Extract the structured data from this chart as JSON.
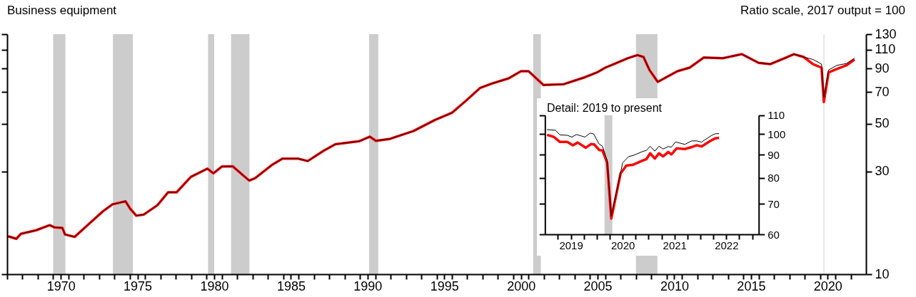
{
  "chart_data": [
    {
      "type": "line",
      "title": "Business equipment",
      "subtitle": "Ratio scale, 2017 output = 100",
      "log": true,
      "xlim": [
        1967,
        2023
      ],
      "ylim": [
        10,
        130
      ],
      "yticks": [
        10,
        30,
        50,
        70,
        90,
        110,
        130
      ],
      "xticks": [
        {
          "value": 1967,
          "label": null
        },
        {
          "value": 1968,
          "label": null
        },
        {
          "value": 1969,
          "label": null
        },
        {
          "value": 1970,
          "label": null
        },
        {
          "value": 1971,
          "label": null
        },
        {
          "value": 1972,
          "label": null
        },
        {
          "value": 1973,
          "label": null
        },
        {
          "value": 1974,
          "label": null
        },
        {
          "value": 1975,
          "label": null
        },
        {
          "value": 1976,
          "label": null
        },
        {
          "value": 1977,
          "label": null
        },
        {
          "value": 1978,
          "label": null
        },
        {
          "value": 1979,
          "label": null
        },
        {
          "value": 1980,
          "label": null
        },
        {
          "value": 1981,
          "label": null
        },
        {
          "value": 1982,
          "label": null
        },
        {
          "value": 1983,
          "label": null
        },
        {
          "value": 1984,
          "label": null
        },
        {
          "value": 1985,
          "label": null
        },
        {
          "value": 1986,
          "label": null
        },
        {
          "value": 1987,
          "label": null
        },
        {
          "value": 1988,
          "label": null
        },
        {
          "value": 1989,
          "label": null
        },
        {
          "value": 1990,
          "label": null
        },
        {
          "value": 1991,
          "label": null
        },
        {
          "value": 1992,
          "label": null
        },
        {
          "value": 1993,
          "label": null
        },
        {
          "value": 1994,
          "label": null
        },
        {
          "value": 1995,
          "label": null
        },
        {
          "value": 1996,
          "label": null
        },
        {
          "value": 1997,
          "label": null
        },
        {
          "value": 1998,
          "label": null
        },
        {
          "value": 1999,
          "label": null
        },
        {
          "value": 2000,
          "label": null
        },
        {
          "value": 2001,
          "label": null
        },
        {
          "value": 2002,
          "label": null
        },
        {
          "value": 2003,
          "label": null
        },
        {
          "value": 2004,
          "label": null
        },
        {
          "value": 2005,
          "label": null
        },
        {
          "value": 2006,
          "label": null
        },
        {
          "value": 2007,
          "label": null
        },
        {
          "value": 2008,
          "label": null
        },
        {
          "value": 2009,
          "label": null
        },
        {
          "value": 2010,
          "label": null
        },
        {
          "value": 2011,
          "label": null
        },
        {
          "value": 2012,
          "label": null
        },
        {
          "value": 2013,
          "label": null
        },
        {
          "value": 2014,
          "label": null
        },
        {
          "value": 2015,
          "label": null
        },
        {
          "value": 2016,
          "label": null
        },
        {
          "value": 2017,
          "label": null
        },
        {
          "value": 2018,
          "label": null
        },
        {
          "value": 2019,
          "label": null
        },
        {
          "value": 2020,
          "label": null
        },
        {
          "value": 2021,
          "label": null
        },
        {
          "value": 2022,
          "label": null
        },
        {
          "value": 1970.5,
          "label": "1970"
        },
        {
          "value": 1975.5,
          "label": "1975"
        },
        {
          "value": 1980.5,
          "label": "1980"
        },
        {
          "value": 1985.5,
          "label": "1985"
        },
        {
          "value": 1990.5,
          "label": "1990"
        },
        {
          "value": 1995.5,
          "label": "1995"
        },
        {
          "value": 2000.5,
          "label": "2000"
        },
        {
          "value": 2005.5,
          "label": "2005"
        },
        {
          "value": 2010.5,
          "label": "2010"
        },
        {
          "value": 2015.5,
          "label": "2015"
        },
        {
          "value": 2020.5,
          "label": "2020"
        }
      ],
      "bands": [
        {
          "axis": "x",
          "from": 1970.0,
          "to": 1970.8,
          "color": "#cccccc"
        },
        {
          "axis": "x",
          "from": 1973.9,
          "to": 1975.2,
          "color": "#cccccc"
        },
        {
          "axis": "x",
          "from": 1980.1,
          "to": 1980.5,
          "color": "#cccccc"
        },
        {
          "axis": "x",
          "from": 1981.6,
          "to": 1982.8,
          "color": "#cccccc"
        },
        {
          "axis": "x",
          "from": 1990.6,
          "to": 1991.2,
          "color": "#cccccc"
        },
        {
          "axis": "x",
          "from": 2001.3,
          "to": 2001.8,
          "color": "#cccccc"
        },
        {
          "axis": "x",
          "from": 2008.0,
          "to": 2009.4,
          "color": "#cccccc"
        },
        {
          "axis": "x",
          "from": 2020.2,
          "to": 2020.3,
          "color": "#e8e8e8"
        }
      ],
      "series": [
        {
          "color": "#ff0000",
          "x": [
            1967.06,
            1967.6,
            1967.9,
            1968.9,
            1969.77,
            1970.08,
            1970.6,
            1970.77,
            1971.4,
            1972.25,
            1973.25,
            1973.87,
            1974.72,
            1975.03,
            1975.42,
            1975.9,
            1976.8,
            1977.5,
            1978.05,
            1978.98,
            1980.06,
            1980.45,
            1981.0,
            1981.7,
            1982.78,
            1983.17,
            1984.25,
            1984.95,
            1985.95,
            1986.6,
            1987.63,
            1988.4,
            1989.95,
            1990.65,
            1991.04,
            1991.97,
            1993.5,
            1994.9,
            1996.0,
            1996.9,
            1997.85,
            1998.6,
            1999.7,
            2000.5,
            2001.0,
            2001.97,
            2003.3,
            2004.7,
            2005.46,
            2006.0,
            2006.55,
            2007.48,
            2008.1,
            2008.49,
            2008.88,
            2009.42,
            2010.7,
            2011.5,
            2012.43,
            2013.67,
            2014.9,
            2016.0,
            2016.75,
            2017.7,
            2018.3,
            2018.93,
            2019.55,
            2020.1,
            2020.25,
            2020.56,
            2021.1,
            2021.72,
            2022.25
          ],
          "values": [
            15.0,
            14.6,
            15.4,
            16.0,
            16.9,
            16.5,
            16.4,
            15.3,
            14.9,
            16.9,
            19.6,
            21.1,
            21.8,
            20.1,
            18.7,
            18.9,
            20.9,
            24.0,
            24.0,
            28.3,
            30.9,
            29.4,
            31.6,
            31.7,
            27.2,
            27.9,
            32.1,
            34.4,
            34.4,
            33.5,
            37.4,
            40.1,
            41.4,
            43.5,
            41.6,
            42.5,
            46.2,
            52.0,
            56.1,
            63.7,
            73.3,
            76.7,
            81.1,
            87.5,
            87.5,
            75.5,
            76.2,
            82.2,
            86.4,
            90.9,
            94.4,
            100.6,
            104.0,
            101.9,
            88.7,
            78.1,
            87.5,
            90.9,
            101.4,
            100.6,
            105.0,
            95.7,
            94.4,
            100.6,
            105.0,
            101.9,
            94.4,
            90.9,
            63.0,
            86.4,
            89.6,
            93.2,
            99.2
          ]
        },
        {
          "color": "#000000",
          "x": [
            1967.06,
            1967.6,
            1967.9,
            1968.9,
            1969.77,
            1970.08,
            1970.6,
            1970.77,
            1971.4,
            1972.25,
            1973.25,
            1973.87,
            1974.72,
            1975.03,
            1975.42,
            1975.9,
            1976.8,
            1977.5,
            1978.05,
            1978.98,
            1980.06,
            1980.45,
            1981.0,
            1981.7,
            1982.78,
            1983.17,
            1984.25,
            1984.95,
            1985.95,
            1986.6,
            1987.63,
            1988.4,
            1989.95,
            1990.65,
            1991.04,
            1991.97,
            1993.5,
            1994.9,
            1996.0,
            1996.9,
            1997.85,
            1998.6,
            1999.7,
            2000.5,
            2001.0,
            2001.97,
            2003.3,
            2004.7,
            2005.46,
            2006.0,
            2006.55,
            2007.48,
            2008.1,
            2008.49,
            2008.88,
            2009.42,
            2010.7,
            2011.5,
            2012.43,
            2013.67,
            2014.9,
            2016.0,
            2016.75,
            2017.7,
            2018.3,
            2018.93,
            2019.55,
            2020.1,
            2020.25,
            2020.56,
            2021.1,
            2021.72,
            2022.25
          ],
          "values": [
            15.0,
            14.6,
            15.4,
            16.0,
            16.9,
            16.5,
            16.4,
            15.3,
            14.9,
            16.9,
            19.6,
            21.1,
            21.8,
            20.1,
            18.7,
            18.9,
            20.9,
            24.0,
            24.0,
            28.3,
            30.9,
            29.4,
            31.6,
            31.7,
            27.2,
            27.9,
            32.1,
            34.4,
            34.4,
            33.5,
            37.4,
            40.1,
            41.4,
            43.5,
            41.6,
            42.5,
            46.2,
            52.0,
            56.1,
            63.7,
            73.3,
            76.7,
            81.1,
            87.5,
            87.5,
            75.5,
            76.2,
            82.2,
            86.4,
            90.9,
            94.4,
            100.6,
            104.0,
            101.9,
            88.7,
            78.1,
            87.5,
            90.9,
            101.4,
            100.6,
            105.0,
            95.7,
            94.4,
            100.6,
            105.0,
            101.9,
            99.2,
            94.4,
            66.2,
            88.7,
            93.2,
            95.0,
            100.6
          ]
        }
      ]
    },
    {
      "type": "line",
      "title": "Detail: 2019 to present",
      "log": true,
      "xlim": [
        2019,
        2023.125
      ],
      "ylim": [
        60,
        110
      ],
      "yticks": [
        60,
        70,
        80,
        90,
        100,
        110
      ],
      "xticks": [
        {
          "value": 2019.25,
          "label": null
        },
        {
          "value": 2019.5,
          "label": "2019"
        },
        {
          "value": 2019.75,
          "label": null
        },
        {
          "value": 2020,
          "label": null
        },
        {
          "value": 2020.25,
          "label": null
        },
        {
          "value": 2020.5,
          "label": "2020"
        },
        {
          "value": 2020.75,
          "label": null
        },
        {
          "value": 2021,
          "label": null
        },
        {
          "value": 2021.25,
          "label": null
        },
        {
          "value": 2021.5,
          "label": "2021"
        },
        {
          "value": 2021.75,
          "label": null
        },
        {
          "value": 2022,
          "label": null
        },
        {
          "value": 2022.25,
          "label": null
        },
        {
          "value": 2022.5,
          "label": "2022"
        },
        {
          "value": 2022.75,
          "label": null
        },
        {
          "value": 2023,
          "label": null
        }
      ],
      "bands": [
        {
          "axis": "x",
          "from": 2020.15,
          "to": 2020.3,
          "color": "#cccccc"
        }
      ],
      "series": [
        {
          "color": "#ff0000",
          "x": [
            2019.04,
            2019.17,
            2019.29,
            2019.43,
            2019.54,
            2019.63,
            2019.79,
            2019.89,
            2019.95,
            2020.05,
            2020.11,
            2020.2,
            2020.28,
            2020.46,
            2020.57,
            2020.69,
            2020.87,
            2020.96,
            2021.03,
            2021.12,
            2021.2,
            2021.28,
            2021.38,
            2021.44,
            2021.54,
            2021.7,
            2021.83,
            2021.93,
            2022.02,
            2022.2,
            2022.29,
            2022.36
          ],
          "values": [
            99.5,
            98.5,
            96.0,
            96.0,
            94.4,
            95.7,
            93.2,
            95.0,
            94.8,
            92.1,
            91.9,
            86.4,
            65.0,
            81.8,
            85.1,
            85.4,
            87.2,
            88.0,
            90.6,
            88.2,
            90.6,
            89.2,
            91.2,
            90.1,
            92.9,
            92.6,
            93.5,
            94.4,
            93.8,
            96.6,
            97.8,
            98.0
          ]
        },
        {
          "color": "#000000",
          "x": [
            2019.04,
            2019.2,
            2019.29,
            2019.43,
            2019.52,
            2019.61,
            2019.77,
            2019.87,
            2019.94,
            2020.04,
            2020.11,
            2020.2,
            2020.28,
            2020.5,
            2020.62,
            2020.69,
            2020.87,
            2020.96,
            2021.03,
            2021.12,
            2021.2,
            2021.28,
            2021.38,
            2021.44,
            2021.52,
            2021.7,
            2021.83,
            2021.93,
            2022.02,
            2022.22,
            2022.29,
            2022.36
          ],
          "values": [
            102.2,
            101.9,
            99.5,
            99.3,
            98.4,
            99.7,
            98.4,
            100.4,
            100.0,
            95.1,
            93.9,
            87.4,
            65.8,
            86.4,
            89.2,
            89.5,
            91.3,
            92.0,
            93.9,
            91.6,
            93.9,
            92.6,
            93.8,
            93.5,
            96.0,
            94.8,
            96.5,
            96.5,
            95.9,
            99.3,
            100.1,
            100.1
          ]
        }
      ]
    }
  ]
}
